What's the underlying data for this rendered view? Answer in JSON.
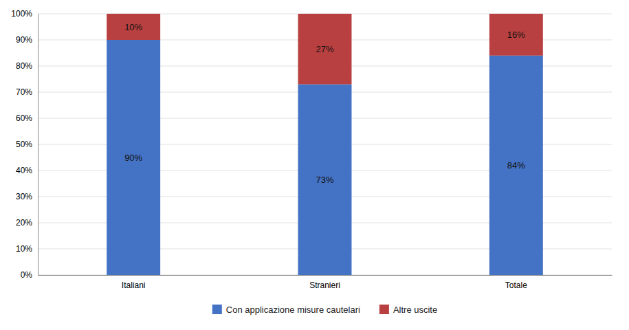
{
  "chart_data": {
    "type": "bar",
    "stacked": true,
    "categories": [
      "Italiani",
      "Stranieri",
      "Totale"
    ],
    "series": [
      {
        "name": "Con applicazione misure cautelari",
        "color": "#4472C4",
        "values": [
          90,
          73,
          84
        ],
        "value_labels": [
          "90%",
          "73%",
          "84%"
        ]
      },
      {
        "name": "Altre uscite",
        "color": "#B94040",
        "values": [
          10,
          27,
          16
        ],
        "value_labels": [
          "10%",
          "27%",
          "16%"
        ]
      }
    ],
    "ylim": [
      0,
      100
    ],
    "yticks": [
      {
        "value": 0,
        "label": "0%"
      },
      {
        "value": 10,
        "label": "10%"
      },
      {
        "value": 20,
        "label": "20%"
      },
      {
        "value": 30,
        "label": "30%"
      },
      {
        "value": 40,
        "label": "40%"
      },
      {
        "value": 50,
        "label": "50%"
      },
      {
        "value": 60,
        "label": "60%"
      },
      {
        "value": 70,
        "label": "70%"
      },
      {
        "value": 80,
        "label": "80%"
      },
      {
        "value": 90,
        "label": "90%"
      },
      {
        "value": 100,
        "label": "100%"
      }
    ],
    "grid": true,
    "data_labels": true,
    "legend": "bottom"
  }
}
